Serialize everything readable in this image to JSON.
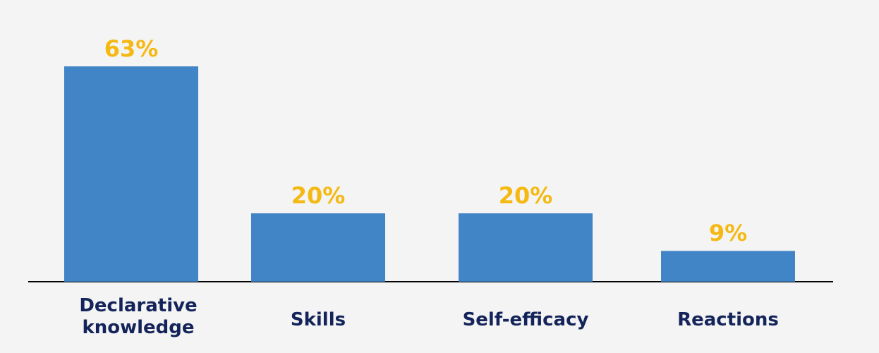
{
  "chart_data": {
    "type": "bar",
    "categories": [
      "Declarative knowledge",
      "Skills",
      "Self-efficacy",
      "Reactions"
    ],
    "values": [
      63,
      20,
      20,
      9
    ],
    "value_labels": [
      "63%",
      "20%",
      "20%",
      "9%"
    ],
    "color": "#4285c6",
    "label_color": "#f5b914",
    "ylim": [
      0,
      63
    ]
  }
}
